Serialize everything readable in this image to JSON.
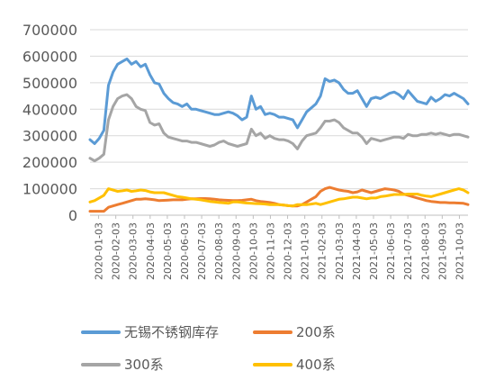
{
  "chart_data": {
    "type": "line",
    "ylim": [
      0,
      700000
    ],
    "y_ticks": [
      "0",
      "100000",
      "200000",
      "300000",
      "400000",
      "500000",
      "600000",
      "700000"
    ],
    "x_ticks": [
      "2020-01-03",
      "2020-02-03",
      "2020-03-03",
      "2020-04-03",
      "2020-05-03",
      "2020-06-03",
      "2020-07-03",
      "2020-08-03",
      "2020-09-03",
      "2020-10-03",
      "2020-11-03",
      "2020-12-03",
      "2021-01-03",
      "2021-02-03",
      "2021-03-03",
      "2021-04-03",
      "2021-05-03",
      "2021-06-03",
      "2021-07-03",
      "2021-08-03",
      "2021-09-03",
      "2021-10-03"
    ],
    "grid": true,
    "legend_position": "bottom",
    "series": [
      {
        "name": "无锡不锈钢库存",
        "color": "#5B9BD5",
        "values": [
          285000,
          270000,
          290000,
          320000,
          490000,
          540000,
          570000,
          580000,
          590000,
          570000,
          580000,
          560000,
          570000,
          530000,
          500000,
          495000,
          460000,
          440000,
          425000,
          420000,
          410000,
          420000,
          400000,
          400000,
          395000,
          390000,
          385000,
          380000,
          380000,
          385000,
          390000,
          385000,
          375000,
          360000,
          370000,
          450000,
          400000,
          410000,
          380000,
          385000,
          380000,
          370000,
          370000,
          365000,
          360000,
          330000,
          360000,
          390000,
          405000,
          420000,
          450000,
          515000,
          505000,
          510000,
          500000,
          475000,
          460000,
          460000,
          470000,
          440000,
          410000,
          440000,
          445000,
          440000,
          450000,
          460000,
          465000,
          455000,
          440000,
          470000,
          450000,
          430000,
          425000,
          420000,
          445000,
          430000,
          440000,
          455000,
          450000,
          460000,
          450000,
          440000,
          420000
        ]
      },
      {
        "name": "200系",
        "color": "#ED7D31",
        "values": [
          15000,
          15000,
          15000,
          15000,
          30000,
          35000,
          40000,
          45000,
          50000,
          55000,
          60000,
          60000,
          62000,
          60000,
          58000,
          55000,
          56000,
          57000,
          58000,
          58000,
          58000,
          60000,
          62000,
          62000,
          63000,
          63000,
          62000,
          60000,
          58000,
          57000,
          56000,
          55000,
          55000,
          56000,
          58000,
          60000,
          55000,
          52000,
          50000,
          48000,
          45000,
          40000,
          38000,
          36000,
          35000,
          35000,
          40000,
          50000,
          60000,
          70000,
          90000,
          100000,
          105000,
          100000,
          95000,
          92000,
          90000,
          85000,
          88000,
          95000,
          90000,
          85000,
          90000,
          95000,
          100000,
          98000,
          95000,
          90000,
          80000,
          75000,
          70000,
          65000,
          60000,
          55000,
          52000,
          50000,
          48000,
          48000,
          47000,
          47000,
          46000,
          45000,
          40000
        ]
      },
      {
        "name": "300系",
        "color": "#A5A5A5",
        "values": [
          215000,
          205000,
          215000,
          230000,
          360000,
          410000,
          440000,
          450000,
          455000,
          440000,
          410000,
          400000,
          395000,
          350000,
          340000,
          345000,
          310000,
          295000,
          290000,
          285000,
          280000,
          280000,
          275000,
          275000,
          270000,
          265000,
          260000,
          265000,
          275000,
          280000,
          270000,
          265000,
          260000,
          265000,
          270000,
          325000,
          300000,
          310000,
          290000,
          300000,
          290000,
          285000,
          285000,
          280000,
          270000,
          250000,
          280000,
          300000,
          305000,
          310000,
          330000,
          355000,
          355000,
          360000,
          350000,
          330000,
          320000,
          310000,
          310000,
          295000,
          270000,
          290000,
          285000,
          280000,
          285000,
          290000,
          295000,
          295000,
          290000,
          305000,
          300000,
          300000,
          305000,
          305000,
          310000,
          305000,
          310000,
          305000,
          300000,
          305000,
          305000,
          300000,
          295000
        ]
      },
      {
        "name": "400系",
        "color": "#FFC000",
        "values": [
          50000,
          55000,
          65000,
          75000,
          100000,
          95000,
          90000,
          92000,
          95000,
          90000,
          92000,
          95000,
          93000,
          88000,
          85000,
          85000,
          85000,
          80000,
          75000,
          70000,
          68000,
          65000,
          62000,
          60000,
          58000,
          55000,
          52000,
          50000,
          48000,
          47000,
          45000,
          50000,
          50000,
          48000,
          46000,
          45000,
          44000,
          43000,
          42000,
          40000,
          40000,
          40000,
          38000,
          36000,
          35000,
          40000,
          40000,
          40000,
          42000,
          45000,
          40000,
          45000,
          50000,
          55000,
          60000,
          62000,
          65000,
          68000,
          68000,
          65000,
          62000,
          65000,
          65000,
          70000,
          72000,
          75000,
          78000,
          78000,
          78000,
          80000,
          80000,
          80000,
          75000,
          72000,
          70000,
          75000,
          80000,
          85000,
          90000,
          95000,
          100000,
          95000,
          85000
        ]
      }
    ]
  }
}
